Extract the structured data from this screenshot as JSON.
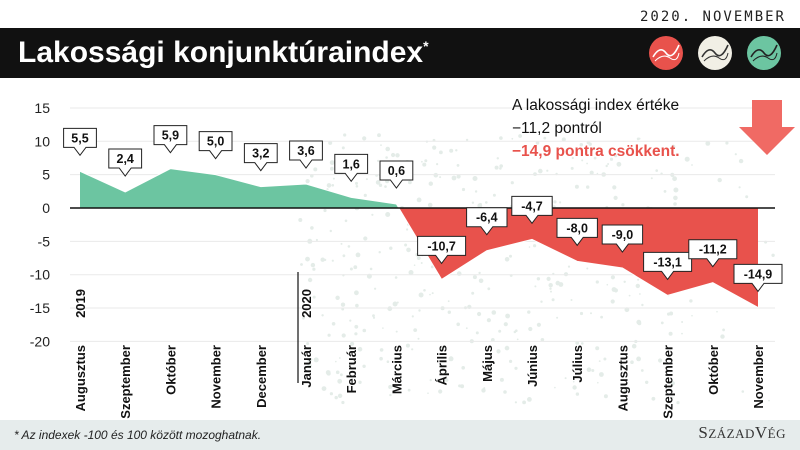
{
  "header": {
    "date": "2020. NOVEMBER",
    "title": "Lakossági konjunktúraindex",
    "title_mark": "*"
  },
  "annotation": {
    "line1": "A lakossági index értéke",
    "line2": "−11,2 pontról",
    "line3": "−14,9 pontra csökkent."
  },
  "footer": {
    "note": "* Az indexek -100 és 100 között mozoghatnak.",
    "brand_big1": "S",
    "brand_small1": "ZÁZAD",
    "brand_big2": "V",
    "brand_small2": "ÉG"
  },
  "colors": {
    "positive": "#6cc5a1",
    "negative": "#e8524c",
    "arrow": "#f06a64"
  },
  "chart_data": {
    "type": "area",
    "categories": [
      "Augusztus",
      "Szeptember",
      "Október",
      "November",
      "December",
      "Január",
      "Február",
      "Március",
      "Április",
      "Május",
      "Június",
      "Július",
      "Augusztus",
      "Szeptember",
      "Október",
      "November"
    ],
    "values": [
      5.5,
      2.4,
      5.9,
      5.0,
      3.2,
      3.6,
      1.6,
      0.6,
      -10.7,
      -6.4,
      -4.7,
      -8.0,
      -9.0,
      -13.1,
      -11.2,
      -14.9
    ],
    "value_labels": [
      "5,5",
      "2,4",
      "5,9",
      "5,0",
      "3,2",
      "3,6",
      "1,6",
      "0,6",
      "-10,7",
      "-6,4",
      "-4,7",
      "-8,0",
      "-9,0",
      "-13,1",
      "-11,2",
      "-14,9"
    ],
    "year_labels": [
      {
        "index": 0,
        "label": "2019"
      },
      {
        "index": 5,
        "label": "2020"
      }
    ],
    "ylim": [
      -20,
      15
    ],
    "yticks": [
      -20,
      -15,
      -10,
      -5,
      0,
      5,
      10,
      15
    ],
    "ytick_labels": [
      "-20",
      "-15",
      "-10",
      "-5",
      "0",
      "5",
      "10",
      "15"
    ]
  }
}
